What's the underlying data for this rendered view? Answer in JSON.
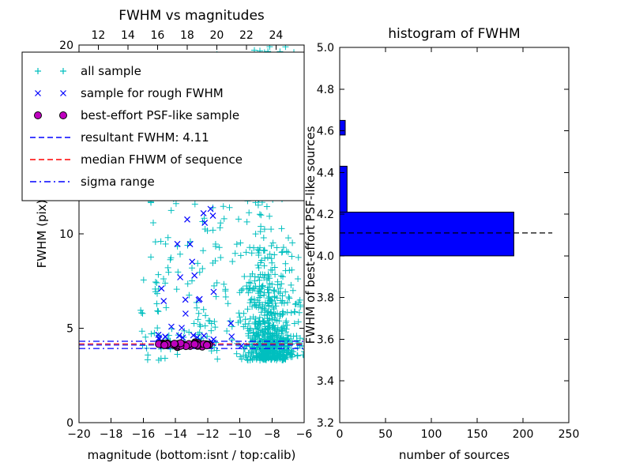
{
  "figure": {
    "background": "#ffffff",
    "frame_color": "#000000"
  },
  "chart_data": [
    {
      "type": "scatter",
      "title": "FWHM vs magnitudes",
      "xlabel": "magnitude (bottom:isnt / top:calib)",
      "ylabel": "FWHM (pix)",
      "xlim": [
        -20,
        -6
      ],
      "ylim": [
        0,
        20
      ],
      "xticks": [
        {
          "v": -20,
          "label": "−20"
        },
        {
          "v": -18,
          "label": "−18"
        },
        {
          "v": -16,
          "label": "−16"
        },
        {
          "v": -14,
          "label": "−14"
        },
        {
          "v": -12,
          "label": "−12"
        },
        {
          "v": -10,
          "label": "−10"
        },
        {
          "v": -8,
          "label": "−8"
        },
        {
          "v": -6,
          "label": "−6"
        }
      ],
      "yticks": [
        {
          "v": 0,
          "label": "0"
        },
        {
          "v": 5,
          "label": "5"
        },
        {
          "v": 10,
          "label": "10"
        },
        {
          "v": 15,
          "label": "15"
        },
        {
          "v": 20,
          "label": "20"
        }
      ],
      "top_axis": {
        "lim": [
          10.7,
          25.9
        ],
        "ticks": [
          {
            "v": 12,
            "label": "12"
          },
          {
            "v": 14,
            "label": "14"
          },
          {
            "v": 16,
            "label": "16"
          },
          {
            "v": 18,
            "label": "18"
          },
          {
            "v": 20,
            "label": "20"
          },
          {
            "v": 22,
            "label": "22"
          },
          {
            "v": 24,
            "label": "24"
          }
        ]
      },
      "legend": [
        {
          "label": "all sample",
          "type": "marker",
          "marker": "plus",
          "color": "#00bfbf"
        },
        {
          "label": "sample for rough FWHM",
          "type": "marker",
          "marker": "x",
          "color": "#0000ff"
        },
        {
          "label": "best-effort PSF-like sample",
          "type": "marker",
          "marker": "circle",
          "color": "#bf00bf"
        },
        {
          "label": "resultant FWHM: 4.11",
          "type": "line",
          "dash": "dashed",
          "color": "#0000ff"
        },
        {
          "label": "median FHWM of sequence",
          "type": "line",
          "dash": "dashed",
          "color": "#ff0000"
        },
        {
          "label": "sigma range",
          "type": "line",
          "dash": "dashdot",
          "color": "#0000ff"
        }
      ],
      "hlines": [
        {
          "y": 4.11,
          "color": "#0000ff",
          "dash": "dashed"
        },
        {
          "y": 4.17,
          "color": "#ff0000",
          "dash": "dashed"
        },
        {
          "y": 3.93,
          "color": "#0000ff",
          "dash": "dashdot"
        },
        {
          "y": 4.31,
          "color": "#0000ff",
          "dash": "dashdot"
        }
      ],
      "seed": 9,
      "series": [
        {
          "name": "all sample",
          "marker": "plus",
          "color": "#00bfbf",
          "clusters": [
            {
              "n": 480,
              "x": {
                "dist": "normal",
                "mean": -8.2,
                "sd": 0.8
              },
              "y": {
                "dist": "exp",
                "base": 3.3,
                "scale": 1.9,
                "max": 13
              }
            },
            {
              "n": 110,
              "x": {
                "dist": "normal",
                "mean": -8.7,
                "sd": 0.5
              },
              "y": {
                "dist": "uniform",
                "min": 6,
                "max": 20
              }
            },
            {
              "n": 140,
              "x": {
                "dist": "uniform",
                "min": -16.3,
                "max": -6.2
              },
              "y": {
                "dist": "exp",
                "base": 3.3,
                "scale": 2.8,
                "max": 19.5
              }
            },
            {
              "n": 60,
              "x": {
                "dist": "uniform",
                "min": -15.6,
                "max": -10.8
              },
              "y": {
                "dist": "uniform",
                "min": 3.8,
                "max": 12.5
              }
            },
            {
              "n": 28,
              "x": {
                "dist": "uniform",
                "min": -9.3,
                "max": -6.6
              },
              "y": {
                "dist": "uniform",
                "min": 17.5,
                "max": 20
              }
            },
            {
              "n": 90,
              "x": {
                "dist": "normal",
                "mean": -7.4,
                "sd": 0.7
              },
              "y": {
                "dist": "uniform",
                "min": 3.3,
                "max": 4.6
              }
            }
          ]
        },
        {
          "name": "sample for rough FWHM",
          "marker": "x",
          "color": "#0000ff",
          "clusters": [
            {
              "n": 16,
              "x": {
                "dist": "uniform",
                "min": -15.1,
                "max": -11.4
              },
              "y": {
                "dist": "uniform",
                "min": 4.0,
                "max": 4.7
              }
            },
            {
              "n": 11,
              "x": {
                "dist": "uniform",
                "min": -15.0,
                "max": -11.2
              },
              "y": {
                "dist": "uniform",
                "min": 4.7,
                "max": 8.2
              }
            },
            {
              "n": 8,
              "x": {
                "dist": "uniform",
                "min": -14.8,
                "max": -11.4
              },
              "y": {
                "dist": "uniform",
                "min": 8.2,
                "max": 11.6
              }
            },
            {
              "n": 3,
              "x": {
                "dist": "uniform",
                "min": -11.2,
                "max": -9.8
              },
              "y": {
                "dist": "uniform",
                "min": 4.0,
                "max": 6.5
              }
            }
          ]
        },
        {
          "name": "best-effort PSF-like sample",
          "marker": "circle",
          "color": "#bf00bf",
          "clusters": [
            {
              "n": 45,
              "x": {
                "dist": "uniform",
                "min": -15.1,
                "max": -11.8
              },
              "y": {
                "dist": "normal",
                "mean": 4.12,
                "sd": 0.05
              }
            }
          ]
        }
      ]
    },
    {
      "type": "bar",
      "orientation": "horizontal",
      "title": "histogram of FWHM",
      "xlabel": "number of sources",
      "ylabel": "FWHM of best-effort PSF-like sources",
      "xlim": [
        0,
        250
      ],
      "ylim": [
        3.2,
        5.0
      ],
      "bar_color": "#0000ff",
      "xticks": [
        {
          "v": 0,
          "label": "0"
        },
        {
          "v": 50,
          "label": "50"
        },
        {
          "v": 100,
          "label": "100"
        },
        {
          "v": 150,
          "label": "150"
        },
        {
          "v": 200,
          "label": "200"
        },
        {
          "v": 250,
          "label": "250"
        }
      ],
      "yticks": [
        {
          "v": 3.2,
          "label": "3.2"
        },
        {
          "v": 3.4,
          "label": "3.4"
        },
        {
          "v": 3.6,
          "label": "3.6"
        },
        {
          "v": 3.8,
          "label": "3.8"
        },
        {
          "v": 4.0,
          "label": "4.0"
        },
        {
          "v": 4.2,
          "label": "4.2"
        },
        {
          "v": 4.4,
          "label": "4.4"
        },
        {
          "v": 4.6,
          "label": "4.6"
        },
        {
          "v": 4.8,
          "label": "4.8"
        },
        {
          "v": 5.0,
          "label": "5.0"
        }
      ],
      "bins": [
        {
          "from": 4.0,
          "to": 4.21,
          "count": 190
        },
        {
          "from": 4.21,
          "to": 4.43,
          "count": 8
        },
        {
          "from": 4.58,
          "to": 4.65,
          "count": 6
        }
      ],
      "median_line": {
        "value": 4.11,
        "xmax": 232,
        "color": "#000000",
        "dash": "dashed"
      }
    }
  ]
}
